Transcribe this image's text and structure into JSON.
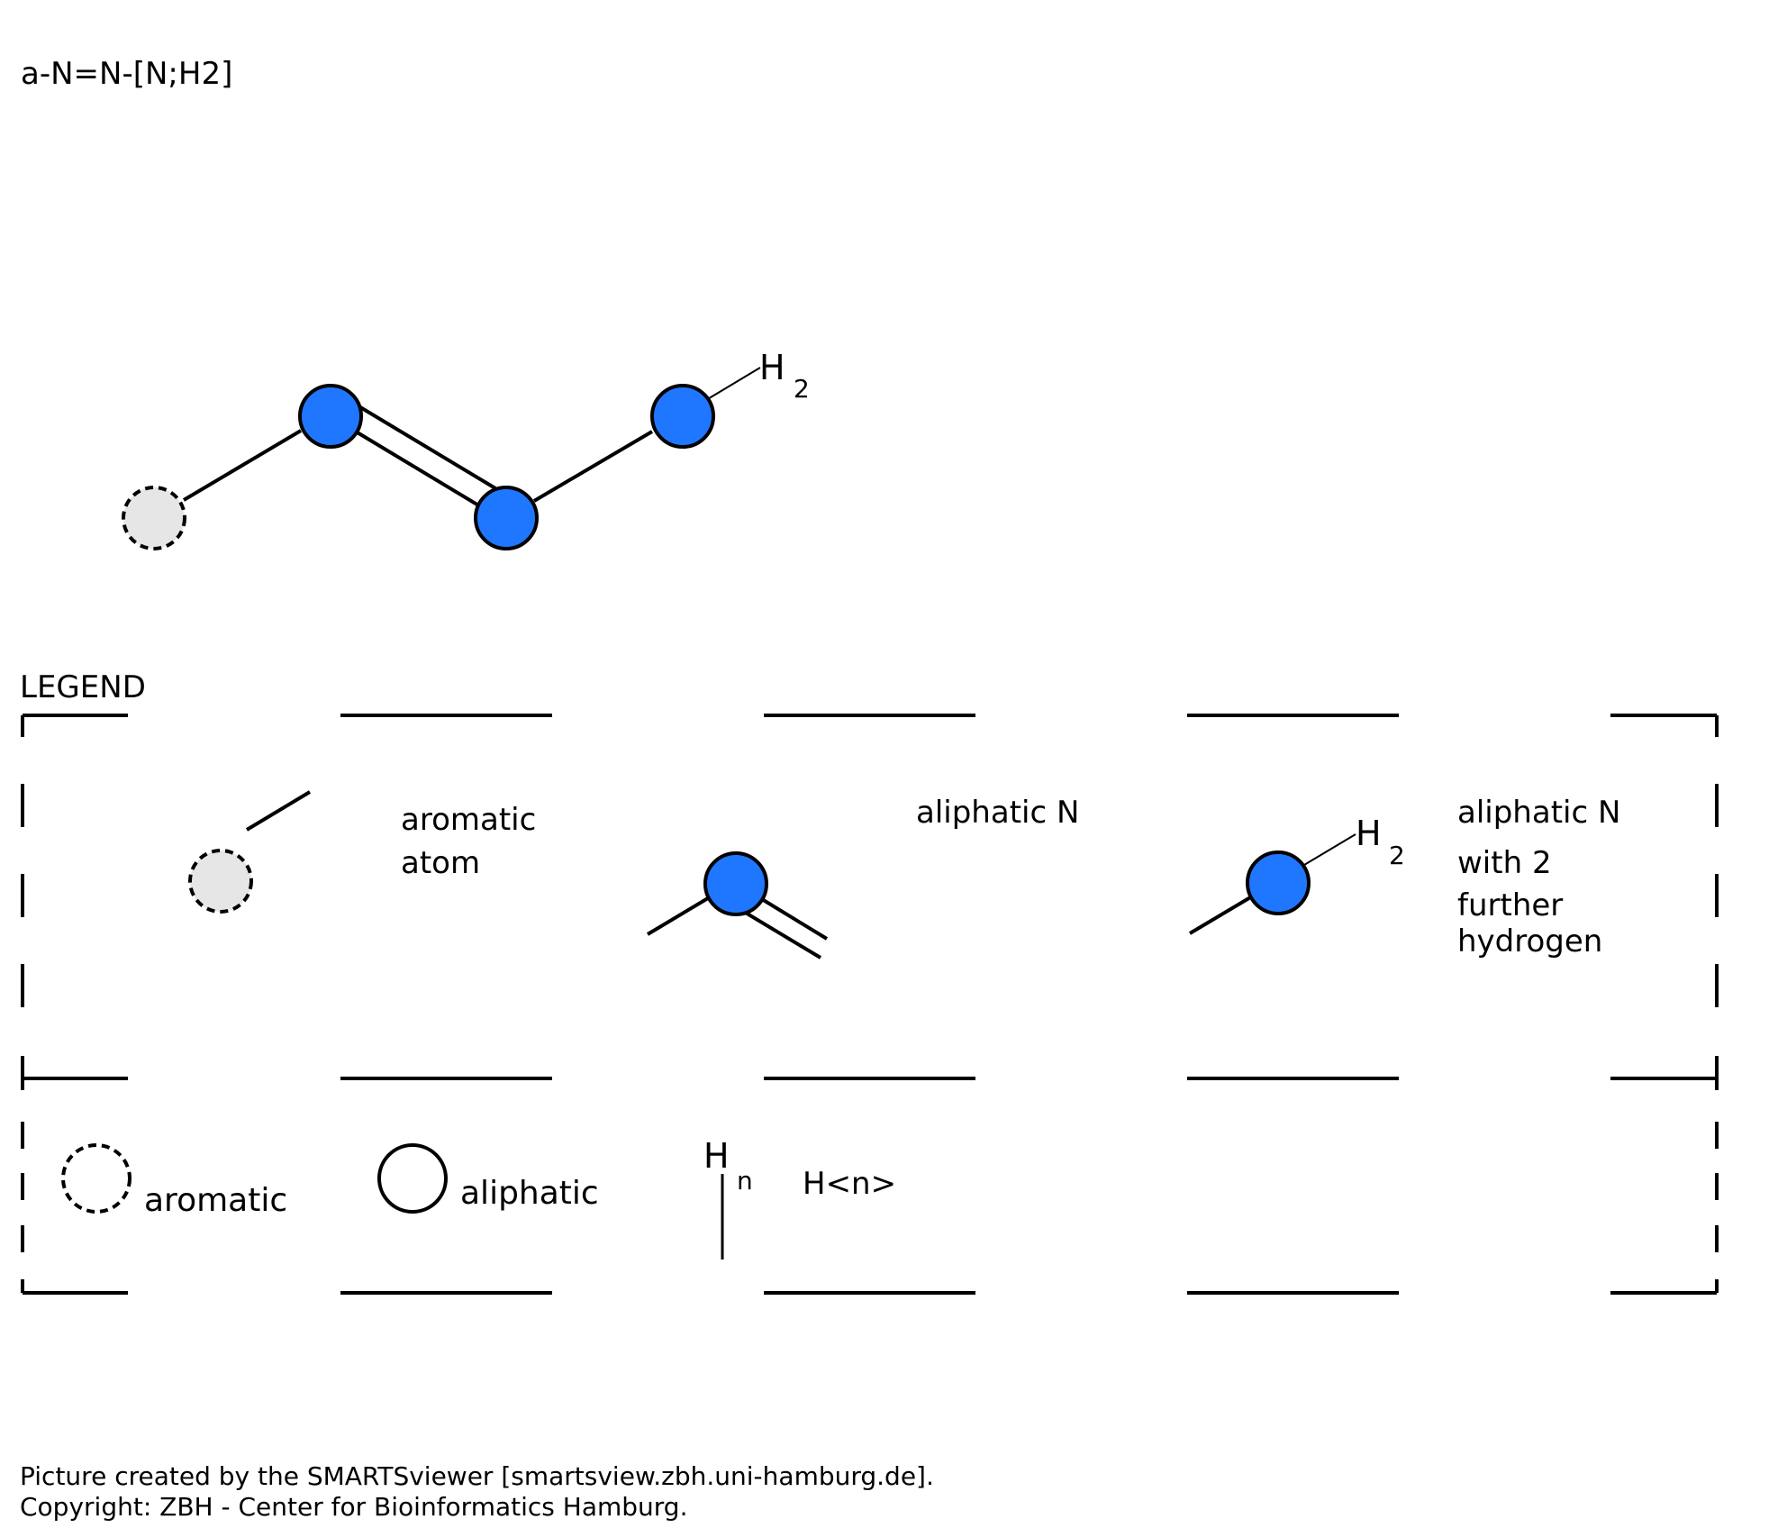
{
  "smarts": "a-N=N-[N;H2]",
  "molecule": {
    "h_label": "H",
    "h_count": "2"
  },
  "legend": {
    "title": "LEGEND",
    "entries": [
      {
        "lines": [
          "aromatic",
          "atom"
        ]
      },
      {
        "lines": [
          "aliphatic N"
        ]
      },
      {
        "lines": [
          "aliphatic N",
          "with 2",
          "further",
          "hydrogen"
        ],
        "h_label": "H",
        "h_count": "2"
      }
    ],
    "symbols": [
      {
        "label": "aromatic"
      },
      {
        "label": "aliphatic"
      },
      {
        "label": "H<n>",
        "h_label": "H",
        "h_sub": "n"
      }
    ]
  },
  "footer": {
    "line1": "Picture created by the SMARTSviewer [smartsview.zbh.uni-hamburg.de].",
    "line2": "Copyright: ZBH - Center for Bioinformatics Hamburg."
  },
  "colors": {
    "aliphatic_n": "#1f77ff",
    "aromatic_fill": "#e6e6e6"
  },
  "icons": [
    "aromatic-atom-icon",
    "aliphatic-atom-icon",
    "hydrogen-count-icon"
  ]
}
